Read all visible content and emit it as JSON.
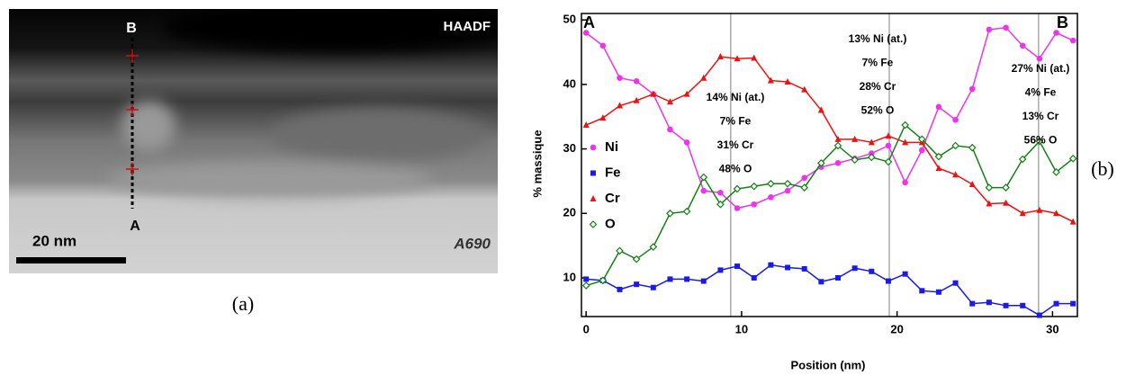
{
  "micrograph": {
    "top_label": "B",
    "bottom_label": "A",
    "mode": "HAADF",
    "scale_bar": "20 nm",
    "sample": "A690",
    "caption": "(a)"
  },
  "chart_data": {
    "type": "line",
    "caption": "(b)",
    "xlabel": "Position (nm)",
    "ylabel": "% massique",
    "x": [
      0,
      1.08,
      2.16,
      3.24,
      4.32,
      5.4,
      6.48,
      7.56,
      8.64,
      9.72,
      10.8,
      11.88,
      12.96,
      14.04,
      15.12,
      16.2,
      17.28,
      18.36,
      19.44,
      20.52,
      21.6,
      22.68,
      23.76,
      24.84,
      25.92,
      27.0,
      28.08,
      29.16,
      30.24,
      31.32
    ],
    "series": [
      {
        "name": "Ni",
        "color": "#ee33ee",
        "marker": "circle",
        "values": [
          48,
          46,
          41,
          40.5,
          38.5,
          33,
          31,
          23.5,
          23.2,
          20.8,
          21.4,
          22.5,
          23.5,
          25.5,
          27.2,
          27.8,
          28.5,
          29.3,
          30.5,
          24.8,
          29.8,
          36.5,
          34.5,
          39.3,
          48.5,
          48.8,
          46,
          44,
          48,
          46.8
        ]
      },
      {
        "name": "Fe",
        "color": "#1a1aee",
        "marker": "square",
        "values": [
          9.8,
          9.6,
          8.2,
          9,
          8.5,
          9.8,
          9.8,
          9.5,
          11.2,
          11.8,
          10,
          12,
          11.6,
          11.4,
          9.4,
          10,
          11.5,
          11,
          9.5,
          10.6,
          8,
          7.8,
          9.2,
          6,
          6.2,
          5.7,
          5.7,
          4.2,
          6,
          6
        ]
      },
      {
        "name": "Cr",
        "color": "#ee1111",
        "marker": "triangle",
        "values": [
          33.7,
          34.8,
          36.7,
          37.5,
          38.5,
          37.3,
          38.5,
          41,
          44.3,
          44,
          44.1,
          40.6,
          40.4,
          39.2,
          36,
          31.5,
          31.5,
          31,
          32,
          31,
          31,
          27,
          26,
          24.5,
          21.5,
          21.6,
          20,
          20.5,
          20,
          18.7
        ]
      },
      {
        "name": "O",
        "color": "#138013",
        "marker": "diamond-open",
        "values": [
          8.8,
          9.6,
          14.2,
          12.9,
          14.8,
          20,
          20.3,
          25.6,
          21.4,
          23.8,
          24.2,
          24.6,
          24.6,
          24,
          27.8,
          30.5,
          28.3,
          28.7,
          28,
          33.7,
          31.5,
          28.8,
          30.5,
          30.2,
          24,
          24,
          28.4,
          31.2,
          26.4,
          28.5
        ]
      }
    ],
    "xlim": [
      -0.3,
      31.6
    ],
    "ylim": [
      4,
      51
    ],
    "xticks": [
      0,
      10,
      20,
      30
    ],
    "yticks": [
      10,
      20,
      30,
      40,
      50
    ],
    "reference_lines_x": [
      9.3,
      19.5,
      29.1
    ],
    "end_labels": [
      "A",
      "B"
    ],
    "annotations": [
      [
        "14% Ni (at.)",
        "7% Fe",
        "31% Cr",
        "48% O"
      ],
      [
        "13% Ni (at.)",
        "7% Fe",
        "28% Cr",
        "52% O"
      ],
      [
        "27% Ni (at.)",
        "4% Fe",
        "13% Cr",
        "56% O"
      ]
    ]
  }
}
